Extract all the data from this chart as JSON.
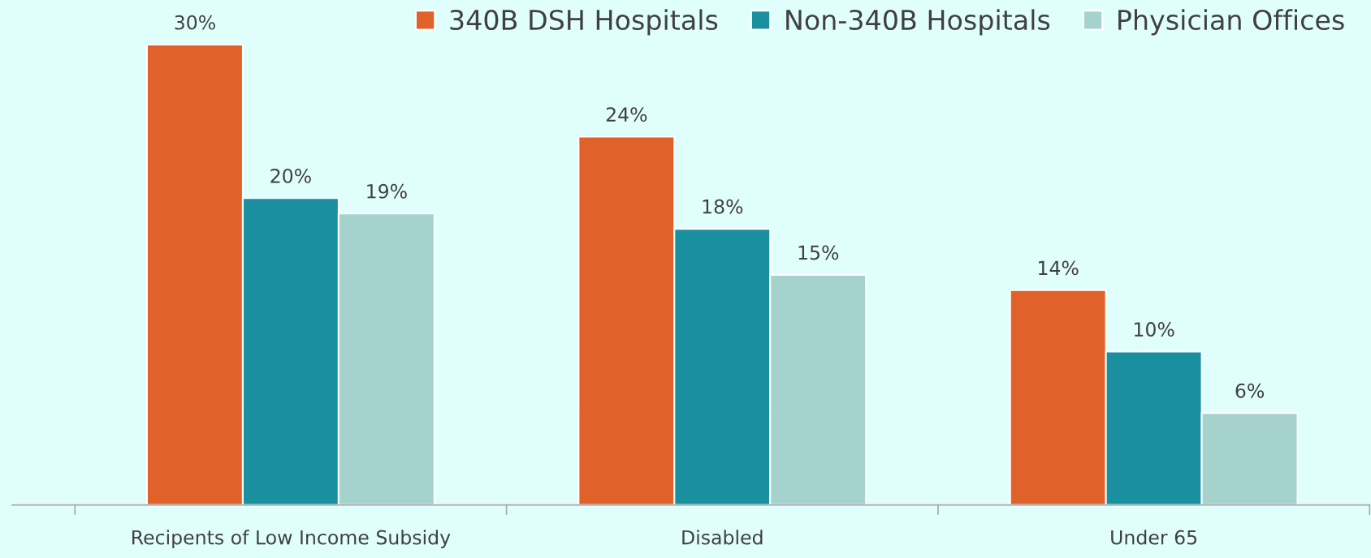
{
  "chart_data": {
    "type": "bar",
    "categories": [
      "Recipents of Low Income Subsidy",
      "Disabled",
      "Under 65"
    ],
    "series": [
      {
        "name": "340B DSH Hospitals",
        "color": "#e0612a",
        "values": [
          30,
          24,
          14
        ],
        "value_labels": [
          "30%",
          "24%",
          "14%"
        ]
      },
      {
        "name": "Non-340B Hospitals",
        "color": "#1a8fa0",
        "values": [
          20,
          18,
          10
        ],
        "value_labels": [
          "20%",
          "18%",
          "10%"
        ]
      },
      {
        "name": "Physician Offices",
        "color": "#a6d2cd",
        "values": [
          19,
          15,
          6
        ],
        "value_labels": [
          "19%",
          "15%",
          "6%"
        ]
      }
    ],
    "legend": "top right",
    "grid": false
  }
}
